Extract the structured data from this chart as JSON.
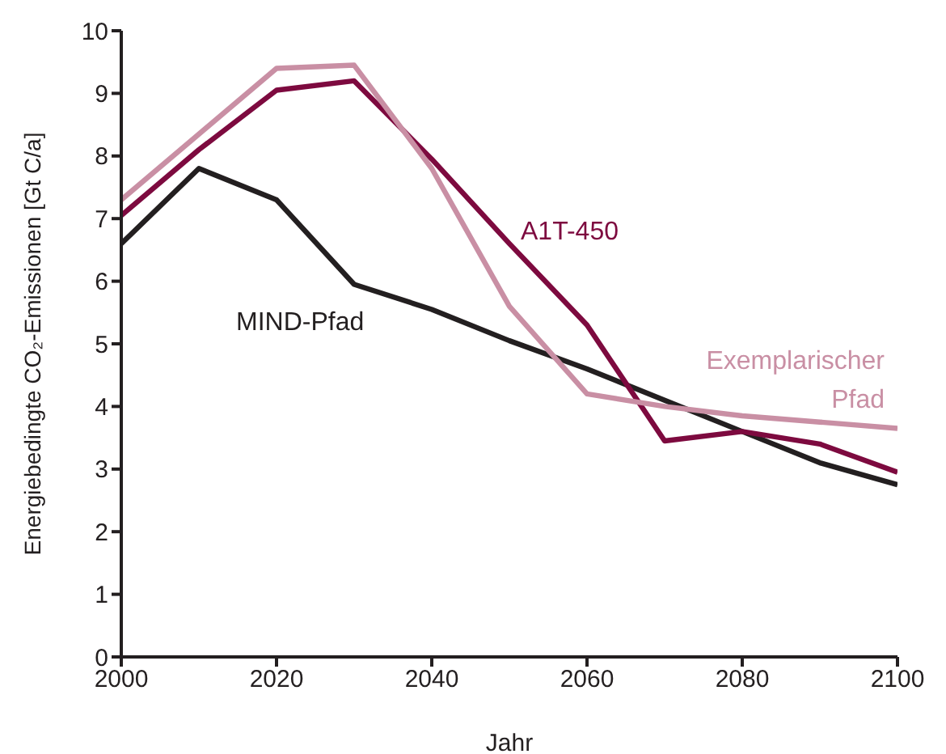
{
  "chart_data": {
    "type": "line",
    "xlabel": "Jahr",
    "ylabel": "Energiebedingte CO₂-Emissionen [Gt C/a]",
    "x": [
      2000,
      2010,
      2020,
      2030,
      2040,
      2050,
      2060,
      2070,
      2080,
      2090,
      2100
    ],
    "series": [
      {
        "name": "MIND-Pfad",
        "color": "#231f20",
        "values": [
          6.6,
          7.8,
          7.3,
          5.95,
          5.55,
          5.05,
          4.6,
          4.1,
          3.6,
          3.1,
          2.75
        ]
      },
      {
        "name": "A1T-450",
        "color": "#7d0a3f",
        "values": [
          7.05,
          8.1,
          9.05,
          9.2,
          7.95,
          6.6,
          5.3,
          3.45,
          3.6,
          3.4,
          2.95
        ]
      },
      {
        "name": "Exemplarischer Pfad",
        "color": "#c98fa4",
        "values": [
          7.3,
          8.35,
          9.4,
          9.45,
          7.8,
          5.6,
          4.2,
          4.0,
          3.85,
          3.75,
          3.65
        ]
      }
    ],
    "xlim": [
      2000,
      2100
    ],
    "xticks": [
      2000,
      2020,
      2040,
      2060,
      2080,
      2100
    ],
    "ylim": [
      0,
      10
    ],
    "yticks": [
      0,
      1,
      2,
      3,
      4,
      5,
      6,
      7,
      8,
      9,
      10
    ],
    "grid": false,
    "legend": false,
    "marker": "none",
    "line_style": "solid"
  }
}
